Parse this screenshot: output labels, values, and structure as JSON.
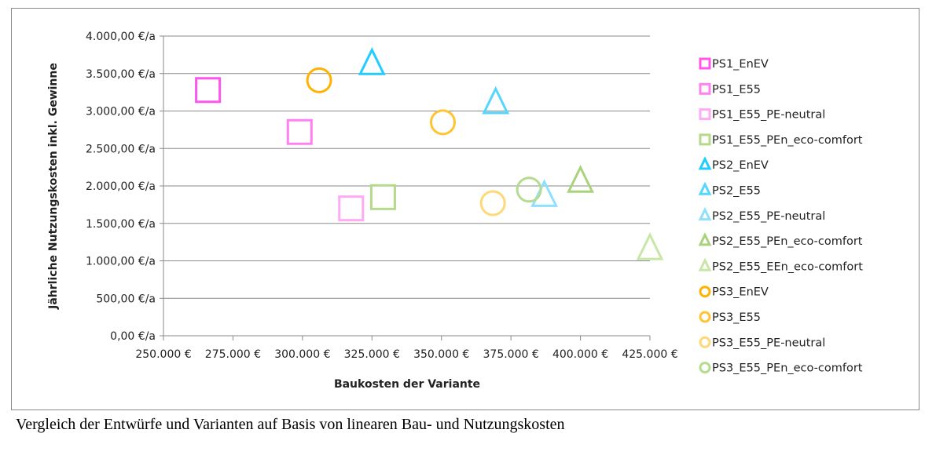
{
  "chart_data": {
    "type": "scatter",
    "title": "",
    "xlabel": "Baukosten der Variante",
    "ylabel": "Jährliche Nutzungskosten inkl. Gewinne",
    "xlim": [
      250000,
      425000
    ],
    "ylim": [
      0,
      4000
    ],
    "x_ticks": [
      "250.000 €",
      "275.000 €",
      "300.000 €",
      "325.000 €",
      "350.000 €",
      "375.000 €",
      "400.000 €",
      "425.000 €"
    ],
    "y_ticks": [
      "0,00 €/a",
      "500,00 €/a",
      "1.000,00 €/a",
      "1.500,00 €/a",
      "2.000,00 €/a",
      "2.500,00 €/a",
      "3.000,00 €/a",
      "3.500,00 €/a",
      "4.000,00 €/a"
    ],
    "grid": "horizontal",
    "legend_placement": "right",
    "series": [
      {
        "name": "PS1_EnEV",
        "marker": "square",
        "color": "#ff55ee",
        "x": 266000,
        "y": 3280
      },
      {
        "name": "PS1_E55",
        "marker": "square",
        "color": "#ff80f2",
        "x": 299000,
        "y": 2720
      },
      {
        "name": "PS1_E55_PE-neutral",
        "marker": "square",
        "color": "#ffaaf6",
        "x": 317500,
        "y": 1700
      },
      {
        "name": "PS1_E55_PEn_eco-comfort",
        "marker": "square",
        "color": "#b5d98a",
        "x": 329000,
        "y": 1850
      },
      {
        "name": "PS2_EnEV",
        "marker": "triangle",
        "color": "#22ccff",
        "x": 325000,
        "y": 3620
      },
      {
        "name": "PS2_E55",
        "marker": "triangle",
        "color": "#55d6ff",
        "x": 369500,
        "y": 3100
      },
      {
        "name": "PS2_E55_PE-neutral",
        "marker": "triangle",
        "color": "#8fe0ff",
        "x": 387000,
        "y": 1860
      },
      {
        "name": "PS2_E55_PEn_eco-comfort",
        "marker": "triangle",
        "color": "#a8d37a",
        "x": 400000,
        "y": 2050
      },
      {
        "name": "PS2_E55_EEn_eco-comfort",
        "marker": "triangle",
        "color": "#c9e6a9",
        "x": 425000,
        "y": 1150
      },
      {
        "name": "PS3_EnEV",
        "marker": "circle",
        "color": "#ffb300",
        "x": 306000,
        "y": 3410
      },
      {
        "name": "PS3_E55",
        "marker": "circle",
        "color": "#ffc433",
        "x": 350500,
        "y": 2850
      },
      {
        "name": "PS3_E55_PE-neutral",
        "marker": "circle",
        "color": "#ffd979",
        "x": 368500,
        "y": 1770
      },
      {
        "name": "PS3_E55_PEn_eco-comfort",
        "marker": "circle",
        "color": "#b5dc8e",
        "x": 381500,
        "y": 1950
      }
    ]
  },
  "caption": "Vergleich der Entwürfe und Varianten auf Basis von linearen Bau- und Nutzungskosten"
}
